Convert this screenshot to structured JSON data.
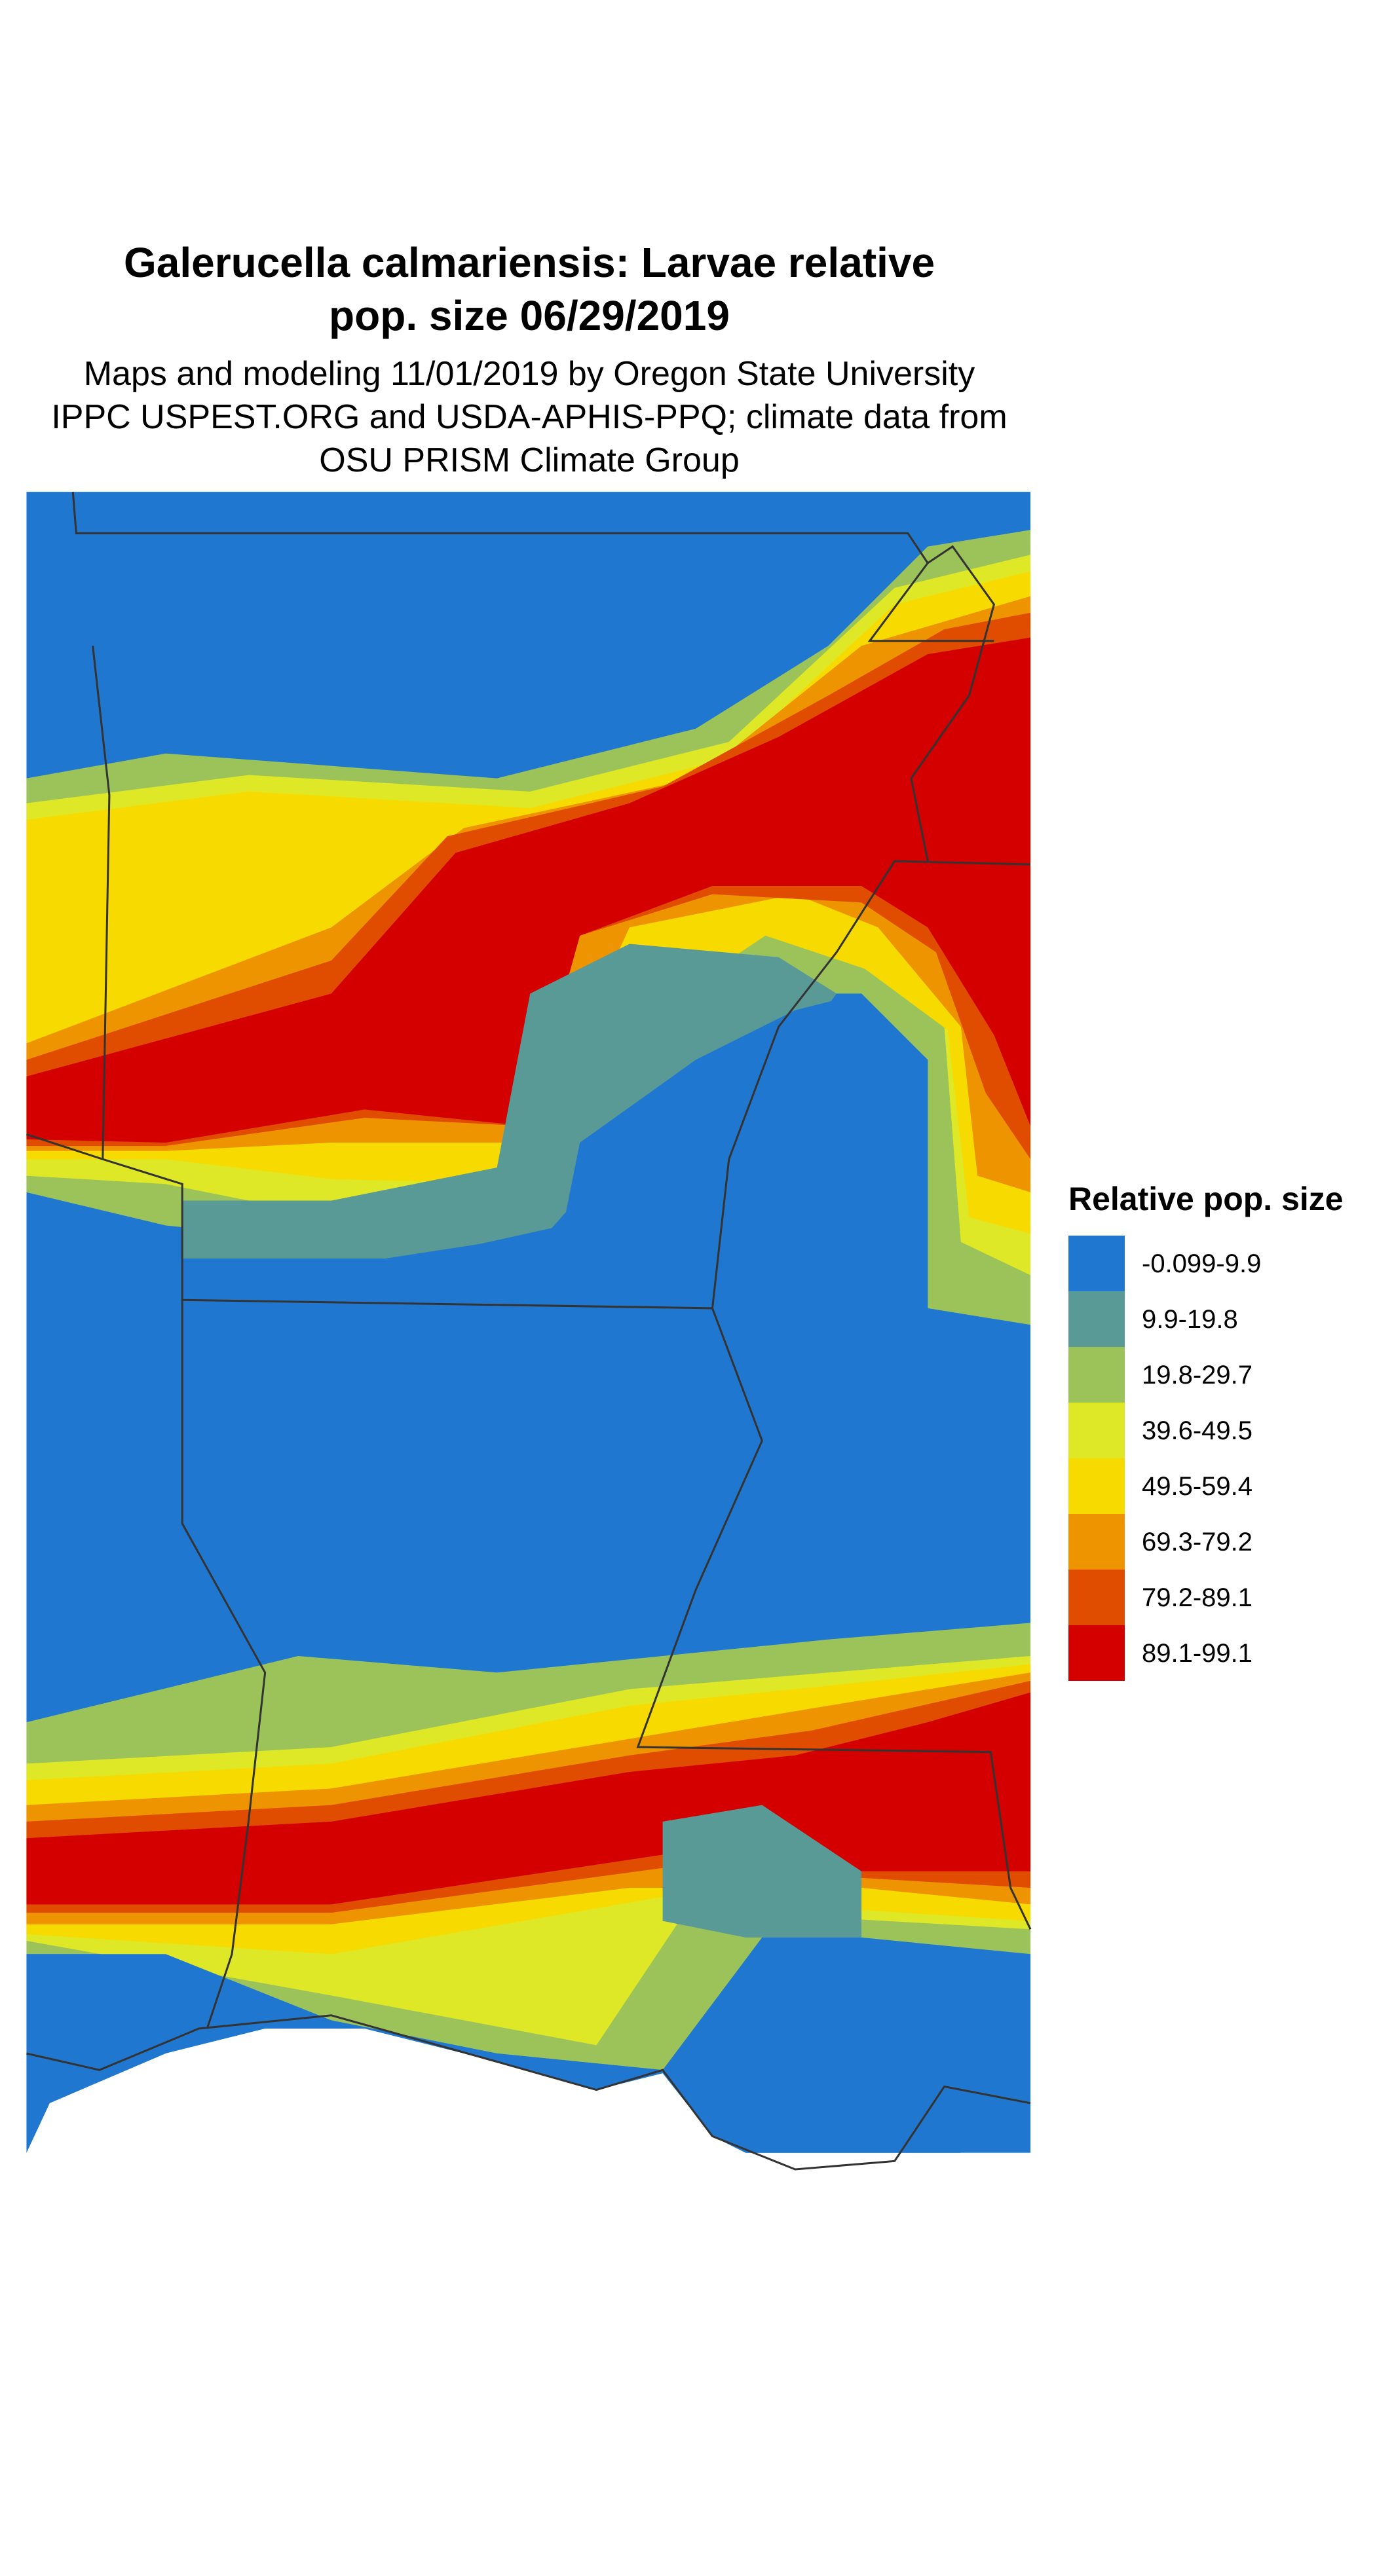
{
  "title": [
    "Galerucella calmariensis: Larvae relative",
    "pop. size 06/29/2019"
  ],
  "subtitle": [
    "Maps and modeling 11/01/2019 by Oregon State University",
    "IPPC USPEST.ORG and USDA-APHIS-PPQ; climate data from",
    "OSU PRISM Climate Group"
  ],
  "legend": {
    "title": "Relative pop. size",
    "items": [
      {
        "label": "-0.099-9.9",
        "color": "#1f77d0"
      },
      {
        "label": "9.9-19.8",
        "color": "#5a9a96"
      },
      {
        "label": "19.8-29.7",
        "color": "#9cc35a"
      },
      {
        "label": "39.6-49.5",
        "color": "#dfe826"
      },
      {
        "label": "49.5-59.4",
        "color": "#f7da00"
      },
      {
        "label": "69.3-79.2",
        "color": "#ee9400"
      },
      {
        "label": "79.2-89.1",
        "color": "#e04c00"
      },
      {
        "label": "89.1-99.1",
        "color": "#d40000"
      }
    ]
  }
}
